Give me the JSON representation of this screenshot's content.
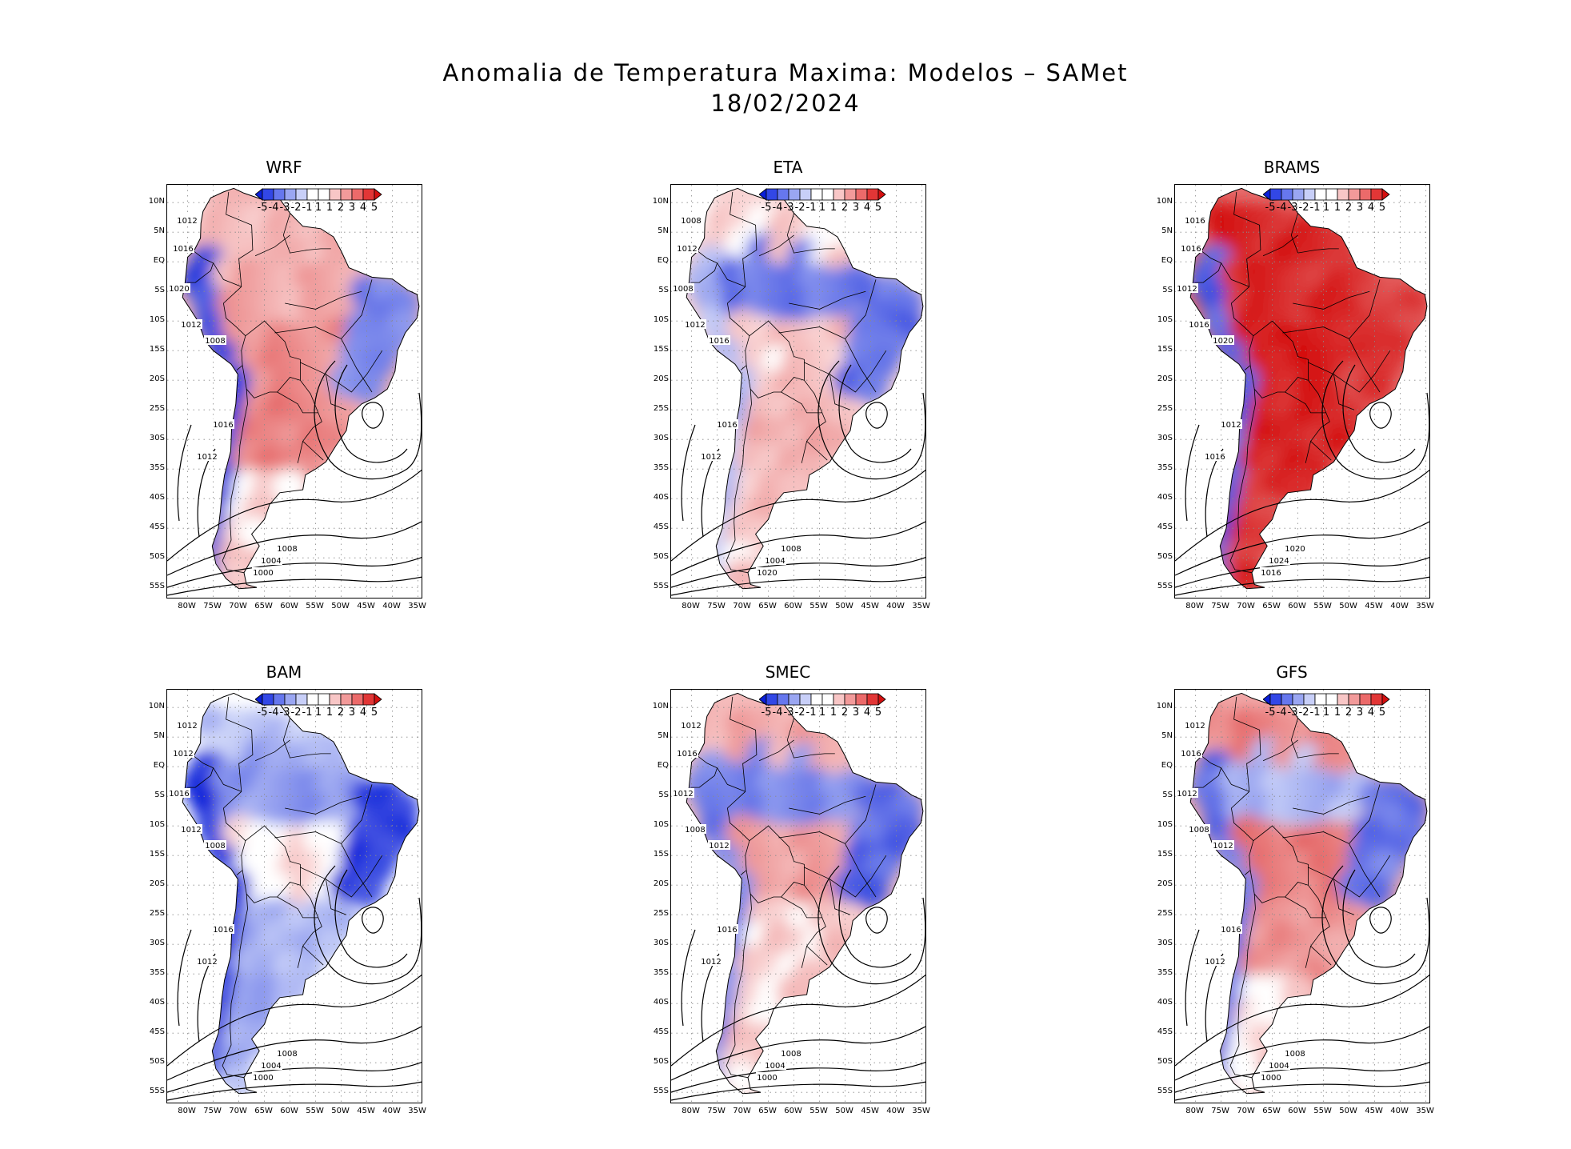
{
  "title": {
    "line1": "Anomalia de Temperatura Maxima: Modelos – SAMet",
    "line2": "18/02/2024"
  },
  "panels": [
    {
      "name": "WRF",
      "anomaly": {
        "north": 1.2,
        "amazon": 1.6,
        "center": 2.2,
        "south": 2.4,
        "andes": -4.0,
        "northeast": -2.6,
        "patagonia": 0.6
      },
      "isobars": [
        "1012",
        "1016",
        "1020",
        "1012",
        "1008",
        "1016",
        "1012",
        "1008",
        "1004",
        "1000"
      ]
    },
    {
      "name": "ETA",
      "anomaly": {
        "north": 0.6,
        "amazon": -2.8,
        "center": 1.0,
        "south": 1.4,
        "andes": -1.2,
        "northeast": -3.0,
        "patagonia": 1.0
      },
      "isobars": [
        "1008",
        "1012",
        "1008",
        "1012",
        "1016",
        "1016",
        "1012",
        "1008",
        "1004",
        "1020"
      ]
    },
    {
      "name": "BRAMS",
      "anomaly": {
        "north": 4.6,
        "amazon": 4.4,
        "center": 4.8,
        "south": 4.6,
        "andes": -3.4,
        "northeast": 4.0,
        "patagonia": 4.2
      },
      "isobars": [
        "1016",
        "1016",
        "1012",
        "1016",
        "1020",
        "1012",
        "1016",
        "1020",
        "1024",
        "1016"
      ]
    },
    {
      "name": "BAM",
      "anomaly": {
        "north": -1.0,
        "amazon": -2.0,
        "center": 0.4,
        "south": -1.4,
        "andes": -4.6,
        "northeast": -4.2,
        "patagonia": -1.6
      },
      "isobars": [
        "1012",
        "1012",
        "1016",
        "1012",
        "1008",
        "1016",
        "1012",
        "1008",
        "1004",
        "1000"
      ]
    },
    {
      "name": "SMEC",
      "anomaly": {
        "north": 1.6,
        "amazon": -2.4,
        "center": 1.8,
        "south": 0.8,
        "andes": -2.6,
        "northeast": -3.2,
        "patagonia": 0.8
      },
      "isobars": [
        "1012",
        "1016",
        "1012",
        "1008",
        "1012",
        "1016",
        "1012",
        "1008",
        "1004",
        "1000"
      ]
    },
    {
      "name": "GFS",
      "anomaly": {
        "north": 2.4,
        "amazon": -1.4,
        "center": 2.6,
        "south": 2.0,
        "andes": -3.0,
        "northeast": -2.8,
        "patagonia": 0.4
      },
      "isobars": [
        "1012",
        "1016",
        "1012",
        "1008",
        "1012",
        "1016",
        "1012",
        "1008",
        "1004",
        "1000"
      ]
    }
  ],
  "colorbar": {
    "labels": [
      "-5",
      "-4",
      "-3",
      "-2",
      "-1",
      "1",
      "1",
      "2",
      "3",
      "4",
      "5"
    ],
    "colors": [
      "#0a1fd9",
      "#3247e6",
      "#6677ee",
      "#9aa6f2",
      "#c8cff8",
      "#ffffff",
      "#ffffff",
      "#f8c6c6",
      "#f29a9a",
      "#ec6a6a",
      "#e23636",
      "#d40f0f"
    ]
  },
  "axes": {
    "lat_labels": [
      "10N",
      "5N",
      "EQ",
      "5S",
      "10S",
      "15S",
      "20S",
      "25S",
      "30S",
      "35S",
      "40S",
      "45S",
      "50S",
      "55S"
    ],
    "lon_labels": [
      "80W",
      "75W",
      "70W",
      "65W",
      "60W",
      "55W",
      "50W",
      "45W",
      "40W",
      "35W"
    ]
  }
}
